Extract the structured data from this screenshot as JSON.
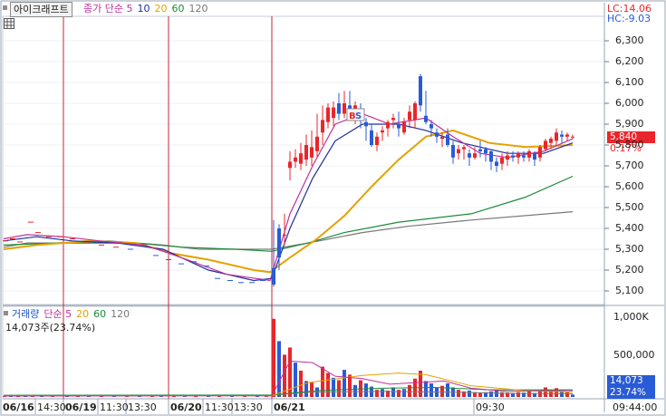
{
  "chart": {
    "title": "아이크래프트",
    "price_legend": [
      {
        "text": "종가 단순 5",
        "color": "#c0309a"
      },
      {
        "text": "10",
        "color": "#1f2e9c"
      },
      {
        "text": "20",
        "color": "#e6a100"
      },
      {
        "text": "60",
        "color": "#1d8a3a"
      },
      {
        "text": "120",
        "color": "#777777"
      }
    ],
    "volume_legend": [
      {
        "text": "거래량",
        "color": "#1d55c8"
      },
      {
        "text": "단순 5",
        "color": "#c0309a"
      },
      {
        "text": "20",
        "color": "#e6a100"
      },
      {
        "text": "60",
        "color": "#1d8a3a"
      },
      {
        "text": "120",
        "color": "#777777"
      }
    ],
    "volume_readout": "14,073주(23.74%)",
    "lc": "LC:14.06",
    "hc": "HC:-9.03",
    "current_price": "5,840",
    "current_change": "0.17%",
    "current_volume": "14,073",
    "current_volume_pct": "23.74%",
    "price_axis": [
      "6,300",
      "6,200",
      "6,100",
      "6,000",
      "5,900",
      "5,800",
      "5,700",
      "5,600",
      "5,500",
      "5,400",
      "5,300",
      "5,200",
      "5,100"
    ],
    "volume_axis": [
      "1,000K",
      "500,000"
    ],
    "time_axis": [
      "06/16",
      "14:30",
      "06/19",
      "11:30",
      "13:30",
      "06/20",
      "11:30",
      "13:30",
      "06/21",
      "09:30",
      "09:44:00"
    ],
    "colors": {
      "up": "#e8262b",
      "down": "#2a5bd6",
      "accent_tag": "#e8262b",
      "vol_tag": "#2a5bd6",
      "day_divider": "#c8233a"
    }
  }
}
